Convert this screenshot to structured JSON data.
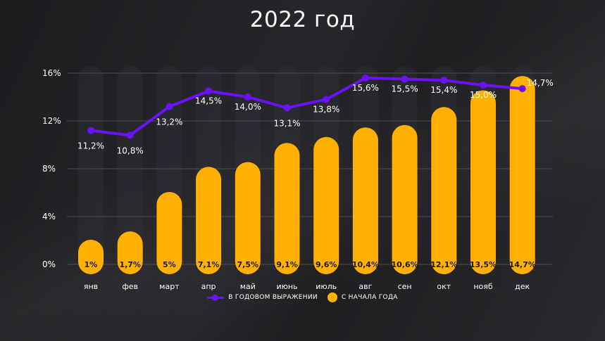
{
  "chart_data": {
    "type": "bar",
    "title": "2022 год",
    "categories": [
      "янв",
      "фев",
      "март",
      "апр",
      "май",
      "июнь",
      "июль",
      "авг",
      "сен",
      "окт",
      "нояб",
      "дек"
    ],
    "yticks": [
      "0%",
      "4%",
      "8%",
      "12%",
      "16%"
    ],
    "ylim": [
      0,
      16
    ],
    "grid": true,
    "legend_position": "bottom",
    "series": [
      {
        "name": "С НАЧАЛА ГОДА",
        "type": "bar",
        "color": "#ffb000",
        "values": [
          1,
          1.7,
          5,
          7.1,
          7.5,
          9.1,
          9.6,
          10.4,
          10.6,
          12.1,
          13.5,
          14.7
        ],
        "labels": [
          "1%",
          "1,7%",
          "5%",
          "7,1%",
          "7,5%",
          "9,1%",
          "9,6%",
          "10,4%",
          "10,6%",
          "12,1%",
          "13,5%",
          "14,7%"
        ]
      },
      {
        "name": "В ГОДОВОМ ВЫРАЖЕНИИ",
        "type": "line",
        "color": "#6a12f5",
        "values": [
          11.2,
          10.8,
          13.2,
          14.5,
          14.0,
          13.1,
          13.8,
          15.6,
          15.5,
          15.4,
          15.0,
          14.7
        ],
        "labels": [
          "11,2%",
          "10,8%",
          "13,2%",
          "14,5%",
          "14,0%",
          "13,1%",
          "13,8%",
          "15,6%",
          "15,5%",
          "15,4%",
          "15,0%",
          "14,7%"
        ]
      }
    ]
  }
}
